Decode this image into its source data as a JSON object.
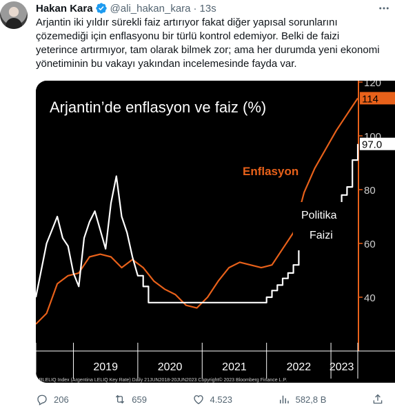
{
  "tweet": {
    "display_name": "Hakan Kara",
    "handle": "@ali_hakan_kara",
    "separator": "·",
    "time": "13s",
    "text": "Arjantin iki yıldır sürekli faiz artırıyor fakat diğer yapısal sorunlarını\nçözemediği için enflasyonu bir türlü kontrol edemiyor. Belki de faizi\nyeterince artırmıyor, tam olarak bilmek zor; ama her durumda yeni ekonomi\nyönetiminin bu vakayı yakından incelemesinde fayda var.",
    "more_icon": "more-dots-icon"
  },
  "actions": {
    "replies": "206",
    "retweets": "659",
    "likes": "4.523",
    "views": "582,8 B"
  },
  "colors": {
    "inflation": "#e8611a",
    "policy_rate": "#ffffff",
    "verified": "#1d9bf0",
    "background": "#000000"
  },
  "chart_data": {
    "type": "line",
    "title": "Arjantin’de enflasyon ve faiz (%)",
    "x_tick_labels": [
      "2019",
      "2020",
      "2021",
      "2022",
      "2023"
    ],
    "y_tick_labels": [
      "120",
      "100",
      "80",
      "60",
      "40"
    ],
    "ylim": [
      20,
      120
    ],
    "last_value_badges": [
      "114",
      "97.0"
    ],
    "footer": "ARLELIQ Index (Argentina LELIQ Key Rate)  Daily 21JUN2018-20JUN2023      Copyright© 2023 Bloomberg Finance L.P.",
    "series": [
      {
        "name": "Enflasyon",
        "color": "#e8611a",
        "points": [
          [
            "2018-06",
            30
          ],
          [
            "2018-08",
            34
          ],
          [
            "2018-10",
            45
          ],
          [
            "2018-12",
            48
          ],
          [
            "2019-02",
            49
          ],
          [
            "2019-04",
            55
          ],
          [
            "2019-06",
            56
          ],
          [
            "2019-08",
            55
          ],
          [
            "2019-10",
            51
          ],
          [
            "2019-12",
            54
          ],
          [
            "2020-02",
            51
          ],
          [
            "2020-04",
            46
          ],
          [
            "2020-06",
            43
          ],
          [
            "2020-08",
            41
          ],
          [
            "2020-10",
            37
          ],
          [
            "2020-12",
            36
          ],
          [
            "2021-02",
            40
          ],
          [
            "2021-04",
            46
          ],
          [
            "2021-06",
            51
          ],
          [
            "2021-08",
            53
          ],
          [
            "2021-10",
            52
          ],
          [
            "2021-12",
            51
          ],
          [
            "2022-02",
            52
          ],
          [
            "2022-04",
            58
          ],
          [
            "2022-06",
            64
          ],
          [
            "2022-08",
            79
          ],
          [
            "2022-10",
            88
          ],
          [
            "2022-12",
            95
          ],
          [
            "2023-02",
            102
          ],
          [
            "2023-04",
            108
          ],
          [
            "2023-06",
            114
          ]
        ]
      },
      {
        "name": "Politika Faizi",
        "color": "#ffffff",
        "points": [
          [
            "2018-06",
            40
          ],
          [
            "2018-08",
            60
          ],
          [
            "2018-09",
            65
          ],
          [
            "2018-10",
            70
          ],
          [
            "2018-11",
            62
          ],
          [
            "2018-12",
            59
          ],
          [
            "2019-01",
            49
          ],
          [
            "2019-02",
            44
          ],
          [
            "2019-03",
            62
          ],
          [
            "2019-04",
            68
          ],
          [
            "2019-05",
            72
          ],
          [
            "2019-06",
            65
          ],
          [
            "2019-07",
            58
          ],
          [
            "2019-08",
            75
          ],
          [
            "2019-09",
            85
          ],
          [
            "2019-10",
            70
          ],
          [
            "2019-11",
            64
          ],
          [
            "2019-12",
            55
          ],
          [
            "2020-01",
            48
          ],
          [
            "2020-02",
            44
          ],
          [
            "2020-03",
            38
          ],
          [
            "2020-06",
            38
          ],
          [
            "2020-09",
            38
          ],
          [
            "2020-11",
            38
          ],
          [
            "2020-12",
            38
          ],
          [
            "2021-03",
            38
          ],
          [
            "2021-06",
            38
          ],
          [
            "2021-09",
            38
          ],
          [
            "2021-12",
            38
          ],
          [
            "2022-01",
            40
          ],
          [
            "2022-02",
            42.5
          ],
          [
            "2022-03",
            44.5
          ],
          [
            "2022-04",
            47
          ],
          [
            "2022-05",
            49
          ],
          [
            "2022-06",
            52
          ],
          [
            "2022-07",
            60
          ],
          [
            "2022-08",
            69.5
          ],
          [
            "2022-09",
            75
          ],
          [
            "2022-12",
            75
          ],
          [
            "2023-02",
            75
          ],
          [
            "2023-03",
            78
          ],
          [
            "2023-04",
            81
          ],
          [
            "2023-05",
            91
          ],
          [
            "2023-06",
            97
          ]
        ]
      }
    ]
  }
}
